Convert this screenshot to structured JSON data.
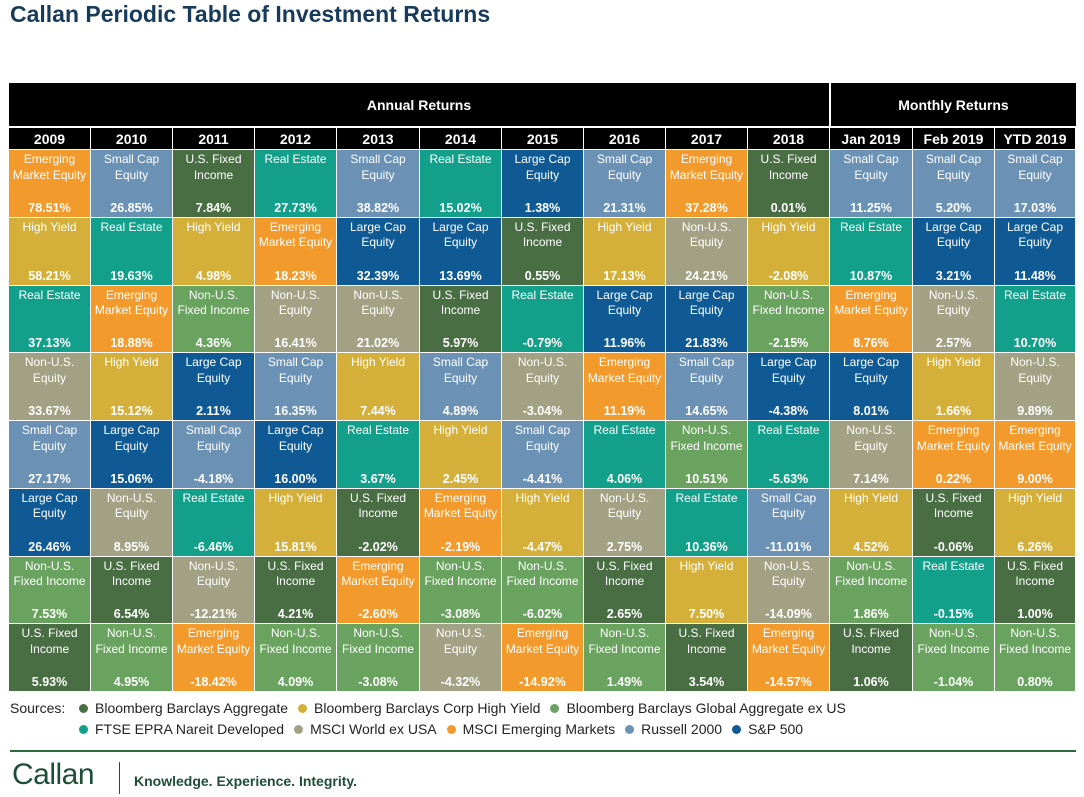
{
  "title": "Callan Periodic Table of Investment Returns",
  "headers": {
    "annual": "Annual Returns",
    "monthly": "Monthly Returns"
  },
  "colors": {
    "agg": "#4a6e44",
    "hy": "#d4b03a",
    "gagg": "#6aa35f",
    "reit": "#12a08a",
    "world": "#a2a184",
    "em": "#f39a2d",
    "r2000": "#6b92b5",
    "sp500": "#0f5a94"
  },
  "assets": {
    "agg": "U.S. Fixed\nIncome",
    "hy": "High Yield",
    "gagg": "Non-U.S.\nFixed Income",
    "reit": "Real Estate",
    "world": "Non-U.S.\nEquity",
    "em": "Emerging\nMarket Equity",
    "r2000": "Small Cap\nEquity",
    "sp500": "Large Cap\nEquity"
  },
  "chart_data": {
    "type": "table",
    "columns": [
      "2009",
      "2010",
      "2011",
      "2012",
      "2013",
      "2014",
      "2015",
      "2016",
      "2017",
      "2018",
      "Jan 2019",
      "Feb 2019",
      "YTD 2019"
    ],
    "rankings": [
      [
        [
          "em",
          "78.51%"
        ],
        [
          "hy",
          "58.21%"
        ],
        [
          "reit",
          "37.13%"
        ],
        [
          "world",
          "33.67%"
        ],
        [
          "r2000",
          "27.17%"
        ],
        [
          "sp500",
          "26.46%"
        ],
        [
          "gagg",
          "7.53%"
        ],
        [
          "agg",
          "5.93%"
        ]
      ],
      [
        [
          "r2000",
          "26.85%"
        ],
        [
          "reit",
          "19.63%"
        ],
        [
          "em",
          "18.88%"
        ],
        [
          "hy",
          "15.12%"
        ],
        [
          "sp500",
          "15.06%"
        ],
        [
          "world",
          "8.95%"
        ],
        [
          "agg",
          "6.54%"
        ],
        [
          "gagg",
          "4.95%"
        ]
      ],
      [
        [
          "agg",
          "7.84%"
        ],
        [
          "hy",
          "4.98%"
        ],
        [
          "gagg",
          "4.36%"
        ],
        [
          "sp500",
          "2.11%"
        ],
        [
          "r2000",
          "-4.18%"
        ],
        [
          "reit",
          "-6.46%"
        ],
        [
          "world",
          "-12.21%"
        ],
        [
          "em",
          "-18.42%"
        ]
      ],
      [
        [
          "reit",
          "27.73%"
        ],
        [
          "em",
          "18.23%"
        ],
        [
          "world",
          "16.41%"
        ],
        [
          "r2000",
          "16.35%"
        ],
        [
          "sp500",
          "16.00%"
        ],
        [
          "hy",
          "15.81%"
        ],
        [
          "agg",
          "4.21%"
        ],
        [
          "gagg",
          "4.09%"
        ]
      ],
      [
        [
          "r2000",
          "38.82%"
        ],
        [
          "sp500",
          "32.39%"
        ],
        [
          "world",
          "21.02%"
        ],
        [
          "hy",
          "7.44%"
        ],
        [
          "reit",
          "3.67%"
        ],
        [
          "agg",
          "-2.02%"
        ],
        [
          "em",
          "-2.60%"
        ],
        [
          "gagg",
          "-3.08%"
        ]
      ],
      [
        [
          "reit",
          "15.02%"
        ],
        [
          "sp500",
          "13.69%"
        ],
        [
          "agg",
          "5.97%"
        ],
        [
          "r2000",
          "4.89%"
        ],
        [
          "hy",
          "2.45%"
        ],
        [
          "em",
          "-2.19%"
        ],
        [
          "gagg",
          "-3.08%"
        ],
        [
          "world",
          "-4.32%"
        ]
      ],
      [
        [
          "sp500",
          "1.38%"
        ],
        [
          "agg",
          "0.55%"
        ],
        [
          "reit",
          "-0.79%"
        ],
        [
          "world",
          "-3.04%"
        ],
        [
          "r2000",
          "-4.41%"
        ],
        [
          "hy",
          "-4.47%"
        ],
        [
          "gagg",
          "-6.02%"
        ],
        [
          "em",
          "-14.92%"
        ]
      ],
      [
        [
          "r2000",
          "21.31%"
        ],
        [
          "hy",
          "17.13%"
        ],
        [
          "sp500",
          "11.96%"
        ],
        [
          "em",
          "11.19%"
        ],
        [
          "reit",
          "4.06%"
        ],
        [
          "world",
          "2.75%"
        ],
        [
          "agg",
          "2.65%"
        ],
        [
          "gagg",
          "1.49%"
        ]
      ],
      [
        [
          "em",
          "37.28%"
        ],
        [
          "world",
          "24.21%"
        ],
        [
          "sp500",
          "21.83%"
        ],
        [
          "r2000",
          "14.65%"
        ],
        [
          "gagg",
          "10.51%"
        ],
        [
          "reit",
          "10.36%"
        ],
        [
          "hy",
          "7.50%"
        ],
        [
          "agg",
          "3.54%"
        ]
      ],
      [
        [
          "agg",
          "0.01%"
        ],
        [
          "hy",
          "-2.08%"
        ],
        [
          "gagg",
          "-2.15%"
        ],
        [
          "sp500",
          "-4.38%"
        ],
        [
          "reit",
          "-5.63%"
        ],
        [
          "r2000",
          "-11.01%"
        ],
        [
          "world",
          "-14.09%"
        ],
        [
          "em",
          "-14.57%"
        ]
      ],
      [
        [
          "r2000",
          "11.25%"
        ],
        [
          "reit",
          "10.87%"
        ],
        [
          "em",
          "8.76%"
        ],
        [
          "sp500",
          "8.01%"
        ],
        [
          "world",
          "7.14%"
        ],
        [
          "hy",
          "4.52%"
        ],
        [
          "gagg",
          "1.86%"
        ],
        [
          "agg",
          "1.06%"
        ]
      ],
      [
        [
          "r2000",
          "5.20%"
        ],
        [
          "sp500",
          "3.21%"
        ],
        [
          "world",
          "2.57%"
        ],
        [
          "hy",
          "1.66%"
        ],
        [
          "em",
          "0.22%"
        ],
        [
          "agg",
          "-0.06%"
        ],
        [
          "reit",
          "-0.15%"
        ],
        [
          "gagg",
          "-1.04%"
        ]
      ],
      [
        [
          "r2000",
          "17.03%"
        ],
        [
          "sp500",
          "11.48%"
        ],
        [
          "reit",
          "10.70%"
        ],
        [
          "world",
          "9.89%"
        ],
        [
          "em",
          "9.00%"
        ],
        [
          "hy",
          "6.26%"
        ],
        [
          "agg",
          "1.00%"
        ],
        [
          "gagg",
          "0.80%"
        ]
      ]
    ]
  },
  "sources": {
    "label": "Sources:",
    "row1": [
      {
        "key": "agg",
        "text": "Bloomberg Barclays Aggregate"
      },
      {
        "key": "hy",
        "text": "Bloomberg Barclays Corp High Yield"
      },
      {
        "key": "gagg",
        "text": "Bloomberg Barclays Global Aggregate ex US"
      }
    ],
    "row2": [
      {
        "key": "reit",
        "text": "FTSE EPRA Nareit Developed"
      },
      {
        "key": "world",
        "text": "MSCI World ex USA"
      },
      {
        "key": "em",
        "text": "MSCI Emerging Markets"
      },
      {
        "key": "r2000",
        "text": "Russell 2000"
      },
      {
        "key": "sp500",
        "text": "S&P 500"
      }
    ]
  },
  "footer": {
    "logo": "Callan",
    "tagline": "Knowledge. Experience. Integrity."
  }
}
